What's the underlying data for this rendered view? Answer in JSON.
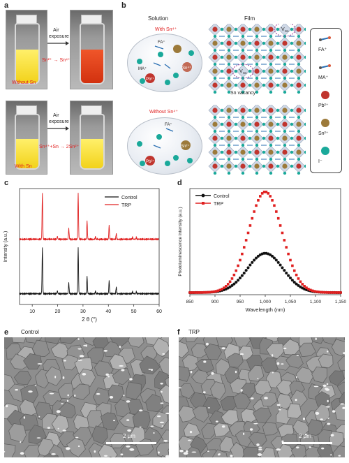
{
  "panel_labels": {
    "a": "a",
    "b": "b",
    "c": "c",
    "d": "d",
    "e": "e",
    "f": "f"
  },
  "panel_a": {
    "top": {
      "arrow_label_1": "Air",
      "arrow_label_2": "exposure",
      "reaction": "Sn²⁺ → Sn⁴⁺",
      "photo_label": "Without Sn"
    },
    "bottom": {
      "arrow_label_1": "Air",
      "arrow_label_2": "exposure",
      "reaction": "Sn⁴⁺+Sn → 2Sn²⁺",
      "photo_label": "With Sn"
    },
    "colors": {
      "yellow": "#f2d21a",
      "orange": "#e8431a",
      "red_text": "#e02020"
    }
  },
  "panel_b": {
    "col_solution": "Solution",
    "col_film": "Film",
    "top_blob_title": "With Sn⁴⁺",
    "bottom_blob_title": "Without Sn⁴⁺",
    "top_blob_labels": {
      "fa": "FA⁺",
      "ma": "MA⁺",
      "pb": "Pb²⁺",
      "sn": "Sn⁴⁺"
    },
    "bottom_blob_labels": {
      "fa": "FA⁺",
      "pb": "Pb²⁺",
      "sn": "Sn²⁺"
    },
    "vacancy_tag": "V",
    "vacancy_sub": "Sn",
    "vacancy_caption": "Sn vacancy",
    "iodide_letter": "I",
    "legend": [
      {
        "label": "FA⁺",
        "icon": "fa-molecule-icon"
      },
      {
        "label": "MA⁺",
        "icon": "ma-molecule-icon"
      },
      {
        "label": "Pb²⁺",
        "icon": "pb-sphere-icon",
        "color": "#c0352e"
      },
      {
        "label": "Sn²⁺",
        "icon": "sn-sphere-icon",
        "color": "#9c7a3a"
      },
      {
        "label": "I⁻",
        "icon": "iodide-sphere-icon",
        "color": "#1aa99a"
      }
    ]
  },
  "panel_c_axis": {
    "xlabel": "2 θ (°)",
    "ylabel": "Intensity (a.u.)"
  },
  "panel_d_axis": {
    "xlabel": "Wavelength (nm)",
    "ylabel": "Photoluminescence intensity (a.u.)"
  },
  "chart_data": [
    {
      "type": "line",
      "id": "c",
      "xlabel": "2 θ (°)",
      "ylabel": "Intensity (a.u.)",
      "xlim": [
        5,
        60
      ],
      "xticks": [
        10,
        20,
        30,
        40,
        50,
        60
      ],
      "series": [
        {
          "name": "Control",
          "color": "#111111",
          "peaks": [
            {
              "x": 14.0,
              "h": 0.95
            },
            {
              "x": 19.9,
              "h": 0.06
            },
            {
              "x": 24.4,
              "h": 0.22
            },
            {
              "x": 28.1,
              "h": 0.95
            },
            {
              "x": 31.6,
              "h": 0.36
            },
            {
              "x": 34.9,
              "h": 0.05
            },
            {
              "x": 40.3,
              "h": 0.27
            },
            {
              "x": 43.1,
              "h": 0.14
            },
            {
              "x": 49.5,
              "h": 0.04
            },
            {
              "x": 51.0,
              "h": 0.04
            }
          ]
        },
        {
          "name": "TRP",
          "color": "#e02020",
          "peaks": [
            {
              "x": 14.0,
              "h": 0.95
            },
            {
              "x": 19.9,
              "h": 0.06
            },
            {
              "x": 24.4,
              "h": 0.22
            },
            {
              "x": 28.1,
              "h": 0.95
            },
            {
              "x": 31.6,
              "h": 0.38
            },
            {
              "x": 34.9,
              "h": 0.05
            },
            {
              "x": 40.3,
              "h": 0.29
            },
            {
              "x": 43.1,
              "h": 0.12
            },
            {
              "x": 49.5,
              "h": 0.04
            },
            {
              "x": 51.0,
              "h": 0.04
            }
          ]
        }
      ]
    },
    {
      "type": "scatter",
      "id": "d",
      "xlabel": "Wavelength (nm)",
      "ylabel": "Photoluminescence intensity (a.u.)",
      "xlim": [
        850,
        1150
      ],
      "xticks": [
        850,
        900,
        950,
        1000,
        1050,
        1100,
        1150
      ],
      "xticklabels": [
        "850",
        "900",
        "950",
        "1,000",
        "1,050",
        "1,100",
        "1,150"
      ],
      "series": [
        {
          "name": "Control",
          "color": "#111111",
          "marker": "circle",
          "peak_x": 1000,
          "peak_y": 0.37,
          "width": 45,
          "baseline": 0.02
        },
        {
          "name": "TRP",
          "color": "#e02020",
          "marker": "square",
          "peak_x": 1000,
          "peak_y": 0.95,
          "width": 42,
          "baseline": 0.02
        }
      ]
    }
  ],
  "panel_e": {
    "title": "Control",
    "scale": "2 μm"
  },
  "panel_f": {
    "title": "TRP",
    "scale": "2 μm"
  }
}
